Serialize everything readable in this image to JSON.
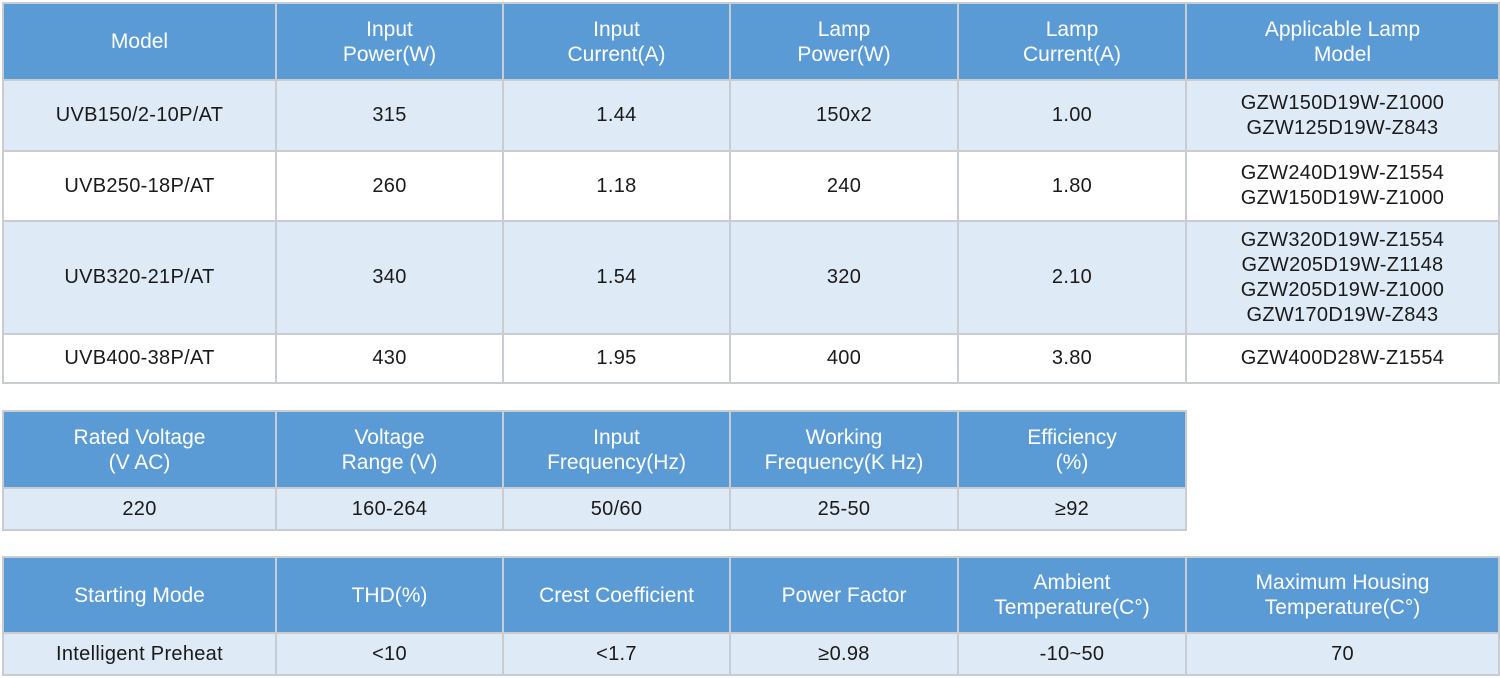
{
  "models_table": {
    "headers": [
      "Model",
      "Input\nPower(W)",
      "Input\nCurrent(A)",
      "Lamp\nPower(W)",
      "Lamp\nCurrent(A)",
      "Applicable Lamp\nModel"
    ],
    "rows": [
      {
        "model": "UVB150/2-10P/AT",
        "input_power": "315",
        "input_current": "1.44",
        "lamp_power": "150x2",
        "lamp_current": "1.00",
        "lamp_models": [
          "GZW150D19W-Z1000",
          "GZW125D19W-Z843"
        ]
      },
      {
        "model": "UVB250-18P/AT",
        "input_power": "260",
        "input_current": "1.18",
        "lamp_power": "240",
        "lamp_current": "1.80",
        "lamp_models": [
          "GZW240D19W-Z1554",
          "GZW150D19W-Z1000"
        ]
      },
      {
        "model": "UVB320-21P/AT",
        "input_power": "340",
        "input_current": "1.54",
        "lamp_power": "320",
        "lamp_current": "2.10",
        "lamp_models": [
          "GZW320D19W-Z1554",
          "GZW205D19W-Z1148",
          "GZW205D19W-Z1000",
          "GZW170D19W-Z843"
        ]
      },
      {
        "model": "UVB400-38P/AT",
        "input_power": "430",
        "input_current": "1.95",
        "lamp_power": "400",
        "lamp_current": "3.80",
        "lamp_models": [
          "GZW400D28W-Z1554"
        ]
      }
    ]
  },
  "electrical_table": {
    "headers": [
      "Rated Voltage\n(V AC)",
      "Voltage\nRange (V)",
      "Input\nFrequency(Hz)",
      "Working\nFrequency(K Hz)",
      "Efficiency\n(%)"
    ],
    "values": [
      "220",
      "160-264",
      "50/60",
      "25-50",
      "≥92"
    ]
  },
  "other_table": {
    "headers": [
      "Starting Mode",
      "THD(%)",
      "Crest Coefficient",
      "Power Factor",
      "Ambient\nTemperature(C°)",
      "Maximum Housing\nTemperature(C°)"
    ],
    "values": [
      "Intelligent Preheat",
      "<10",
      "<1.7",
      "≥0.98",
      "-10~50",
      "70"
    ]
  },
  "colors": {
    "header_bg": "#5b9bd5",
    "header_text": "#ffffff",
    "band_row_bg": "#deeaf6",
    "plain_row_bg": "#ffffff",
    "grid": "#c9ccd0"
  }
}
